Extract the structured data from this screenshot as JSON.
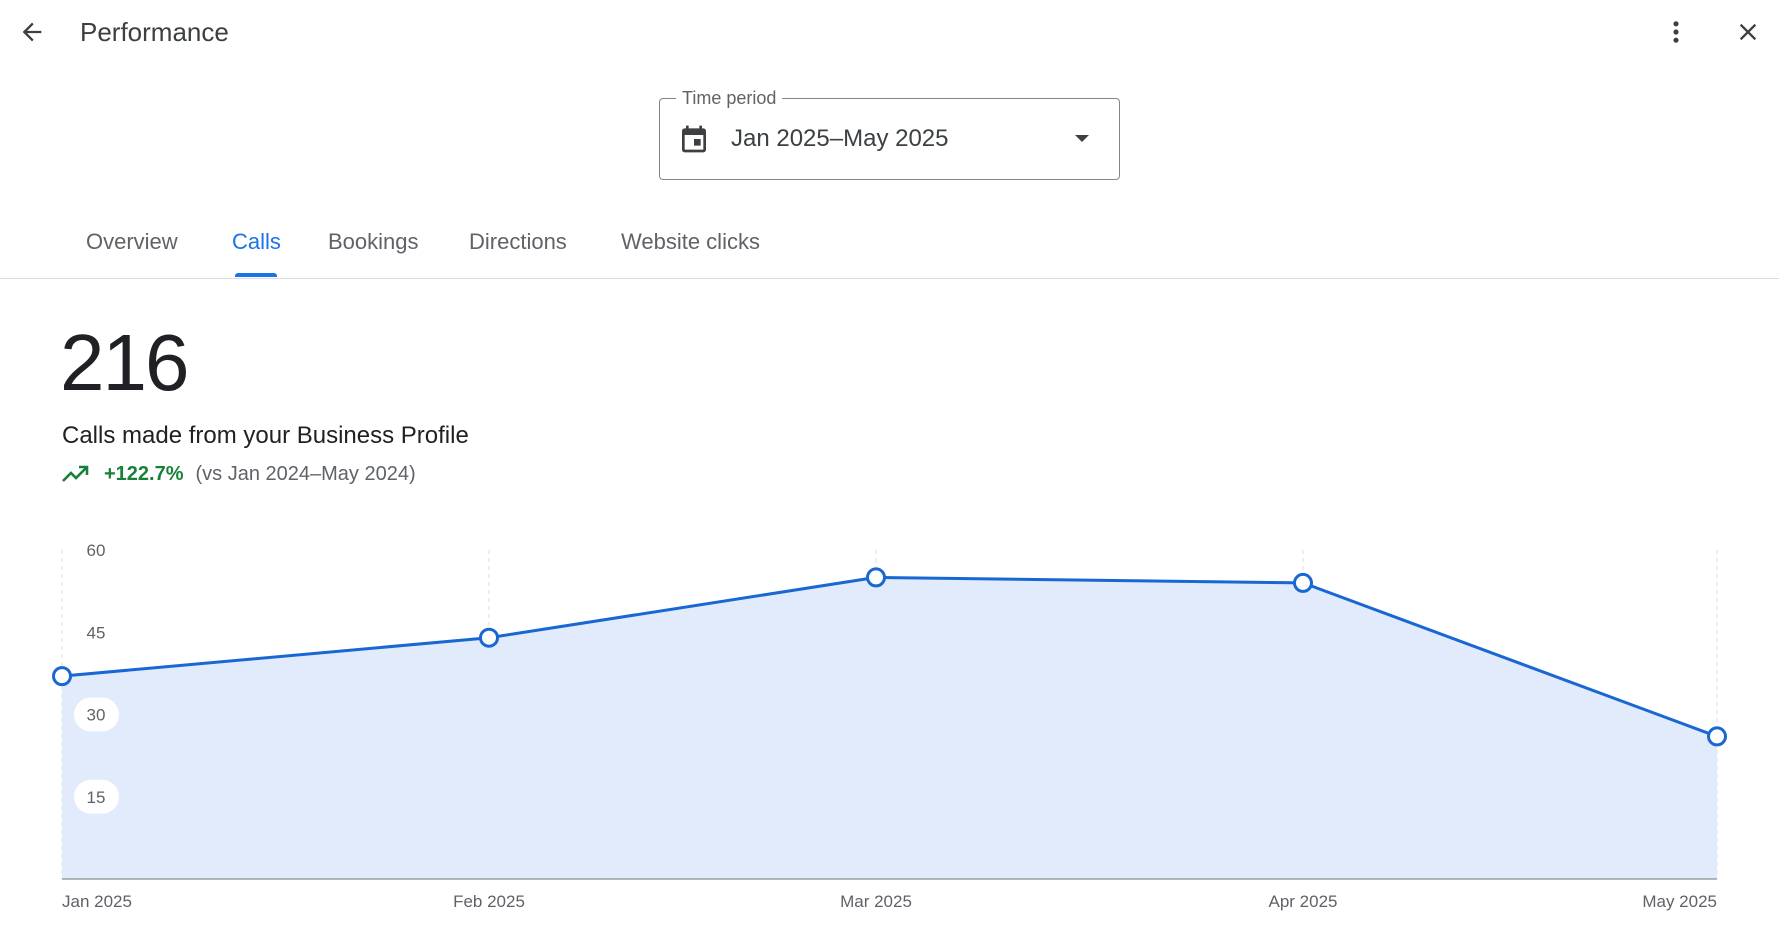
{
  "header": {
    "title": "Performance",
    "back_icon": "arrow-back-icon",
    "more_icon": "more-vert-icon",
    "close_icon": "close-icon"
  },
  "time_period": {
    "label": "Time period",
    "value": "Jan 2025–May 2025",
    "icon": "calendar-icon"
  },
  "tabs": [
    {
      "label": "Overview",
      "active": false
    },
    {
      "label": "Calls",
      "active": true
    },
    {
      "label": "Bookings",
      "active": false
    },
    {
      "label": "Directions",
      "active": false
    },
    {
      "label": "Website clicks",
      "active": false
    }
  ],
  "metric": {
    "value": "216",
    "label": "Calls made from your Business Profile",
    "change": "+122.7%",
    "comparison": "(vs Jan 2024–May 2024)"
  },
  "colors": {
    "accent": "#1a73e8",
    "line": "#1967d2",
    "area": "#e1ebfb",
    "positive": "#188038"
  },
  "chart_data": {
    "type": "area",
    "categories": [
      "Jan 2025",
      "Feb 2025",
      "Mar 2025",
      "Apr 2025",
      "May 2025"
    ],
    "series": [
      {
        "values": [
          37,
          44,
          55,
          54,
          26
        ]
      }
    ],
    "ylim": [
      0,
      60
    ],
    "yticks": [
      15,
      30,
      45,
      60
    ],
    "grid": "vertical-dashed",
    "legend": "none"
  }
}
